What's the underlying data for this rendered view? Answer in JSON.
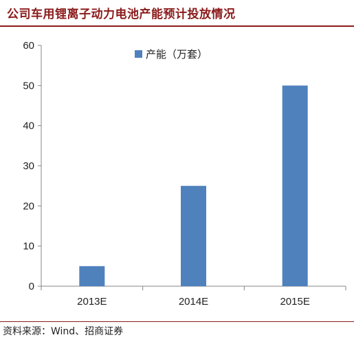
{
  "title": "公司车用锂离子动力电池产能预计投放情况",
  "source": "资料来源：Wind、招商证券",
  "chart_data": {
    "type": "bar",
    "categories": [
      "2013E",
      "2014E",
      "2015E"
    ],
    "series": [
      {
        "name": "产能（万套）",
        "values": [
          5,
          25,
          50
        ]
      }
    ],
    "title": "",
    "xlabel": "",
    "ylabel": "",
    "ylim": [
      0,
      60
    ],
    "yticks": [
      0,
      10,
      20,
      30,
      40,
      50,
      60
    ],
    "grid": false,
    "legend": "top",
    "bar_color": "#4F81BD"
  }
}
